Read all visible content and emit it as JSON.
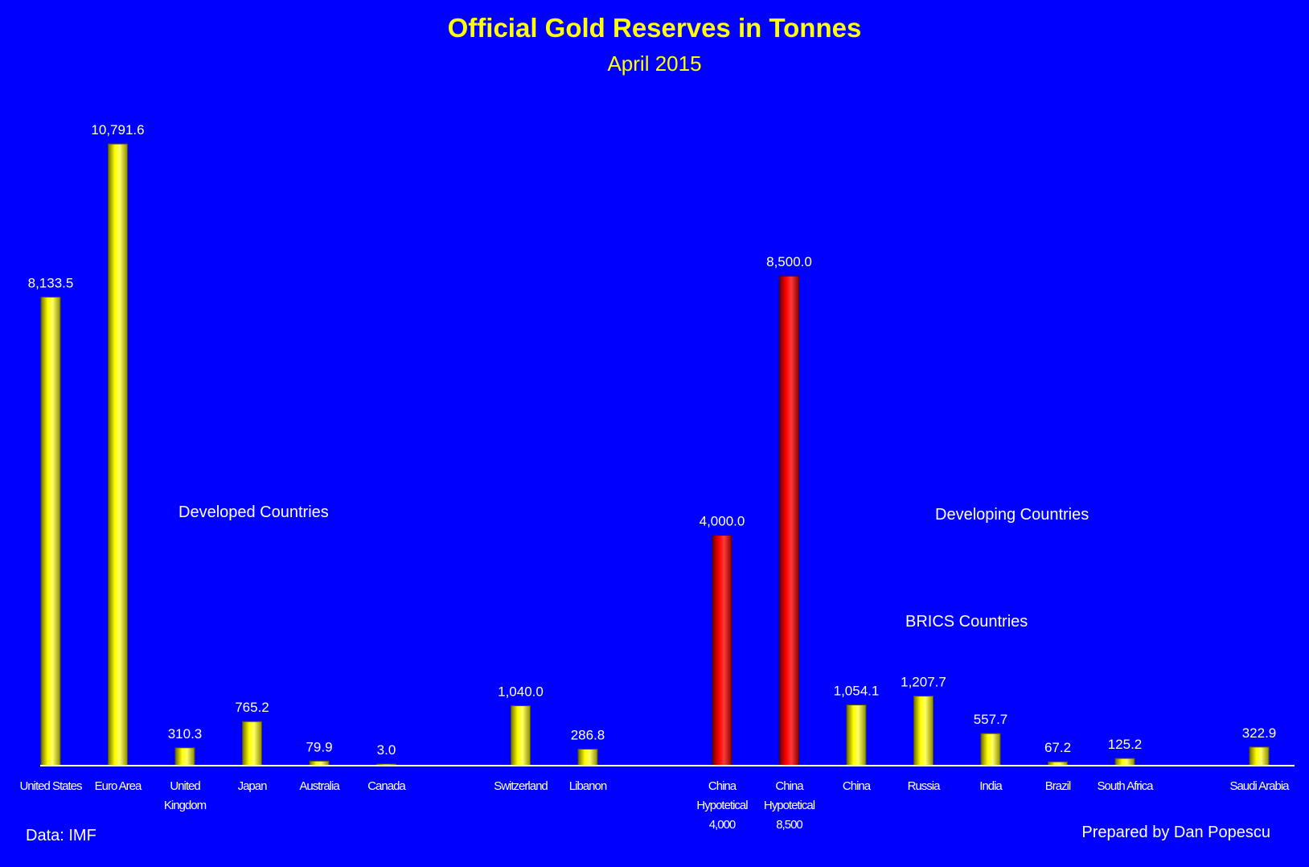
{
  "chart_data": {
    "type": "bar",
    "title": "Official Gold Reserves in Tonnes",
    "subtitle": "April 2015",
    "categories": [
      [
        "United States"
      ],
      [
        "Euro Area"
      ],
      [
        "United",
        "Kingdom"
      ],
      [
        "Japan"
      ],
      [
        "Australia"
      ],
      [
        "Canada"
      ],
      [
        ""
      ],
      [
        "Switzerland"
      ],
      [
        "Libanon"
      ],
      [
        ""
      ],
      [
        "China",
        "Hypotetical",
        "4,000"
      ],
      [
        "China",
        "Hypotetical",
        "8,500"
      ],
      [
        "China"
      ],
      [
        "Russia"
      ],
      [
        "India"
      ],
      [
        "Brazil"
      ],
      [
        "South Africa"
      ],
      [
        ""
      ],
      [
        "Saudi Arabia"
      ]
    ],
    "values": [
      8133.5,
      10791.6,
      310.3,
      765.2,
      79.9,
      3.0,
      null,
      1040.0,
      286.8,
      null,
      4000.0,
      8500.0,
      1054.1,
      1207.7,
      557.7,
      67.2,
      125.2,
      null,
      322.9
    ],
    "value_labels": [
      "8,133.5",
      "10,791.6",
      "310.3",
      "765.2",
      "79.9",
      "3.0",
      "",
      "1,040.0",
      "286.8",
      "",
      "4,000.0",
      "8,500.0",
      "1,054.1",
      "1,207.7",
      "557.7",
      "67.2",
      "125.2",
      "",
      "322.9"
    ],
    "highlight": [
      false,
      false,
      false,
      false,
      false,
      false,
      false,
      false,
      false,
      false,
      true,
      true,
      false,
      false,
      false,
      false,
      false,
      false,
      false
    ],
    "ylim": [
      0,
      11500
    ],
    "xlabel": "",
    "ylabel": "",
    "grid": false,
    "legend": "none",
    "annotations": [
      "Developed Countries",
      "Developing Countries",
      "BRICS Countries"
    ]
  },
  "footer": {
    "source": "Data: IMF",
    "credit": "Prepared by Dan Popescu"
  },
  "colors": {
    "background": "#0000ff",
    "bar": "#ffff00",
    "bar_highlight": "#ff0000",
    "title": "#ffff00",
    "text": "#ffffff",
    "axis": "#ffffff"
  }
}
